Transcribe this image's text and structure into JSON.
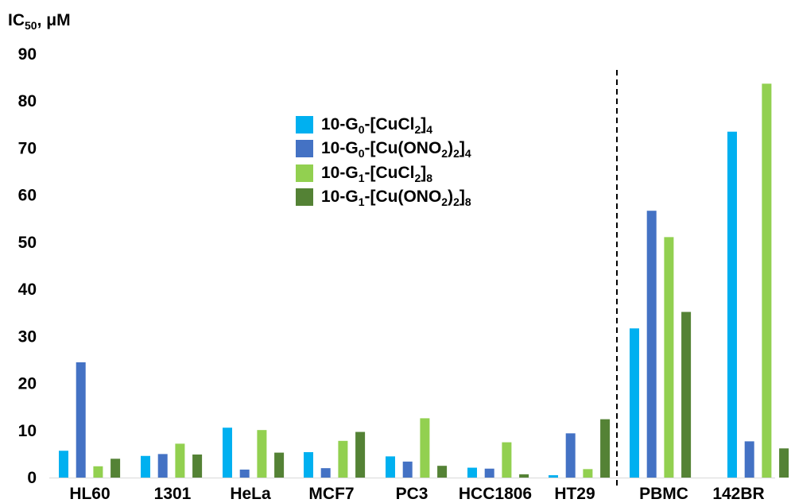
{
  "chart_data": {
    "type": "bar",
    "title": "",
    "ylabel": "IC50, μM",
    "ylabel_main": "IC",
    "ylabel_sub": "50",
    "ylabel_tail": ", μM",
    "xlabel": "",
    "ylim": [
      0,
      90
    ],
    "yticks": [
      0,
      10,
      20,
      30,
      40,
      50,
      60,
      70,
      80,
      90
    ],
    "grid": false,
    "legend_position": "center-left, upper area",
    "categories": [
      "HL60",
      "1301",
      "HeLa",
      "MCF7",
      "PC3",
      "HCC1806",
      "HT29",
      "PBMC",
      "142BR"
    ],
    "divider_after_category": "HT29",
    "series": [
      {
        "name": "10-G0-[CuCl2]4",
        "label_parts": [
          {
            "t": "10-G"
          },
          {
            "sub": "0"
          },
          {
            "t": "-[CuCl"
          },
          {
            "sub": "2"
          },
          {
            "t": "]"
          },
          {
            "sub": "4"
          }
        ],
        "color": "#00b0f0",
        "values": [
          5.7,
          4.6,
          10.6,
          5.4,
          4.5,
          2.1,
          0.5,
          31.7,
          73.5
        ]
      },
      {
        "name": "10-G0-[Cu(ONO2)2]4",
        "label_parts": [
          {
            "t": "10-G"
          },
          {
            "sub": "0"
          },
          {
            "t": "-[Cu(ONO"
          },
          {
            "sub": "2"
          },
          {
            "t": ")"
          },
          {
            "sub": "2"
          },
          {
            "t": "]"
          },
          {
            "sub": "4"
          }
        ],
        "color": "#4472c4",
        "values": [
          24.5,
          5.0,
          1.7,
          2.0,
          3.4,
          1.9,
          9.4,
          56.7,
          7.7
        ]
      },
      {
        "name": "10-G1-[CuCl2]8",
        "label_parts": [
          {
            "t": "10-G"
          },
          {
            "sub": "1"
          },
          {
            "t": "-[CuCl"
          },
          {
            "sub": "2"
          },
          {
            "t": "]"
          },
          {
            "sub": "8"
          }
        ],
        "color": "#92d050",
        "values": [
          2.4,
          7.2,
          10.1,
          7.8,
          12.6,
          7.5,
          1.8,
          51.1,
          83.7
        ]
      },
      {
        "name": "10-G1-[Cu(ONO2)2]8",
        "label_parts": [
          {
            "t": "10-G"
          },
          {
            "sub": "1"
          },
          {
            "t": "-[Cu(ONO"
          },
          {
            "sub": "2"
          },
          {
            "t": ")"
          },
          {
            "sub": "2"
          },
          {
            "t": "]"
          },
          {
            "sub": "8"
          }
        ],
        "color": "#548235",
        "values": [
          4.0,
          4.9,
          5.3,
          9.7,
          2.5,
          0.7,
          12.4,
          35.2,
          6.2
        ]
      }
    ]
  }
}
